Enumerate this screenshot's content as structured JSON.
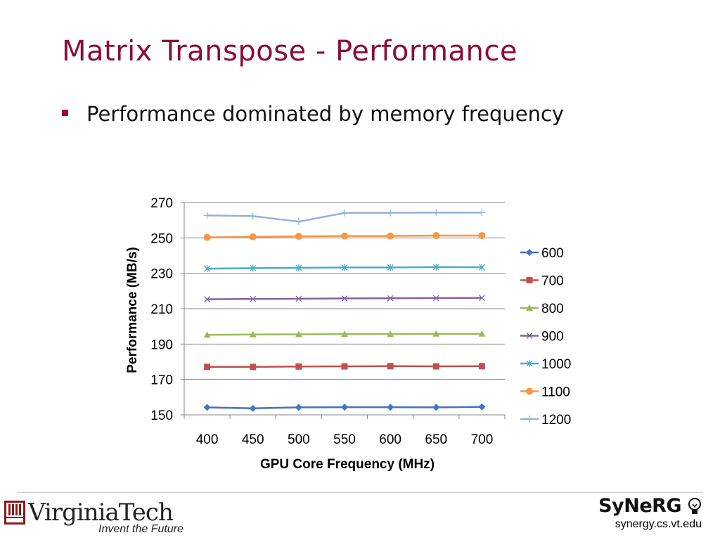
{
  "slide": {
    "title": "Matrix Transpose - Performance",
    "bullet": "Performance dominated by memory frequency"
  },
  "footer": {
    "vt_name": "VirginiaTech",
    "vt_tagline": "Invent the Future",
    "synergy_logo": "SyNeRG",
    "synergy_url": "synergy.cs.vt.edu"
  },
  "colors": {
    "title": "#8b0d3a",
    "bullet": "#9b0a3c"
  },
  "chart_data": {
    "type": "line",
    "xlabel": "GPU Core Frequency (MHz)",
    "ylabel": "Performance (MB/s)",
    "x": [
      400,
      450,
      500,
      550,
      600,
      650,
      700
    ],
    "ylim": [
      150,
      270
    ],
    "yticks": [
      150,
      170,
      190,
      210,
      230,
      250,
      270
    ],
    "grid": true,
    "legend_position": "right",
    "series": [
      {
        "name": "600",
        "color": "#4472c4",
        "marker": "diamond",
        "values": [
          154.2,
          153.7,
          154.2,
          154.3,
          154.3,
          154.2,
          154.5
        ]
      },
      {
        "name": "700",
        "color": "#c0504d",
        "marker": "square",
        "values": [
          177.1,
          177.1,
          177.3,
          177.4,
          177.5,
          177.4,
          177.5
        ]
      },
      {
        "name": "800",
        "color": "#9bbb59",
        "marker": "triangle",
        "values": [
          195.2,
          195.4,
          195.5,
          195.6,
          195.7,
          195.8,
          195.8
        ]
      },
      {
        "name": "900",
        "color": "#8064a2",
        "marker": "x",
        "values": [
          215.3,
          215.5,
          215.6,
          215.8,
          215.9,
          216.0,
          216.1
        ]
      },
      {
        "name": "1000",
        "color": "#4bacc6",
        "marker": "star",
        "values": [
          232.6,
          232.9,
          233.1,
          233.3,
          233.3,
          233.5,
          233.4
        ]
      },
      {
        "name": "1100",
        "color": "#f79646",
        "marker": "circle",
        "values": [
          250.3,
          250.6,
          250.9,
          251.1,
          251.1,
          251.3,
          251.3
        ]
      },
      {
        "name": "1200",
        "color": "#95b3d7",
        "marker": "plus",
        "values": [
          262.7,
          262.3,
          259.2,
          264.1,
          264.2,
          264.3,
          264.3
        ]
      }
    ]
  }
}
